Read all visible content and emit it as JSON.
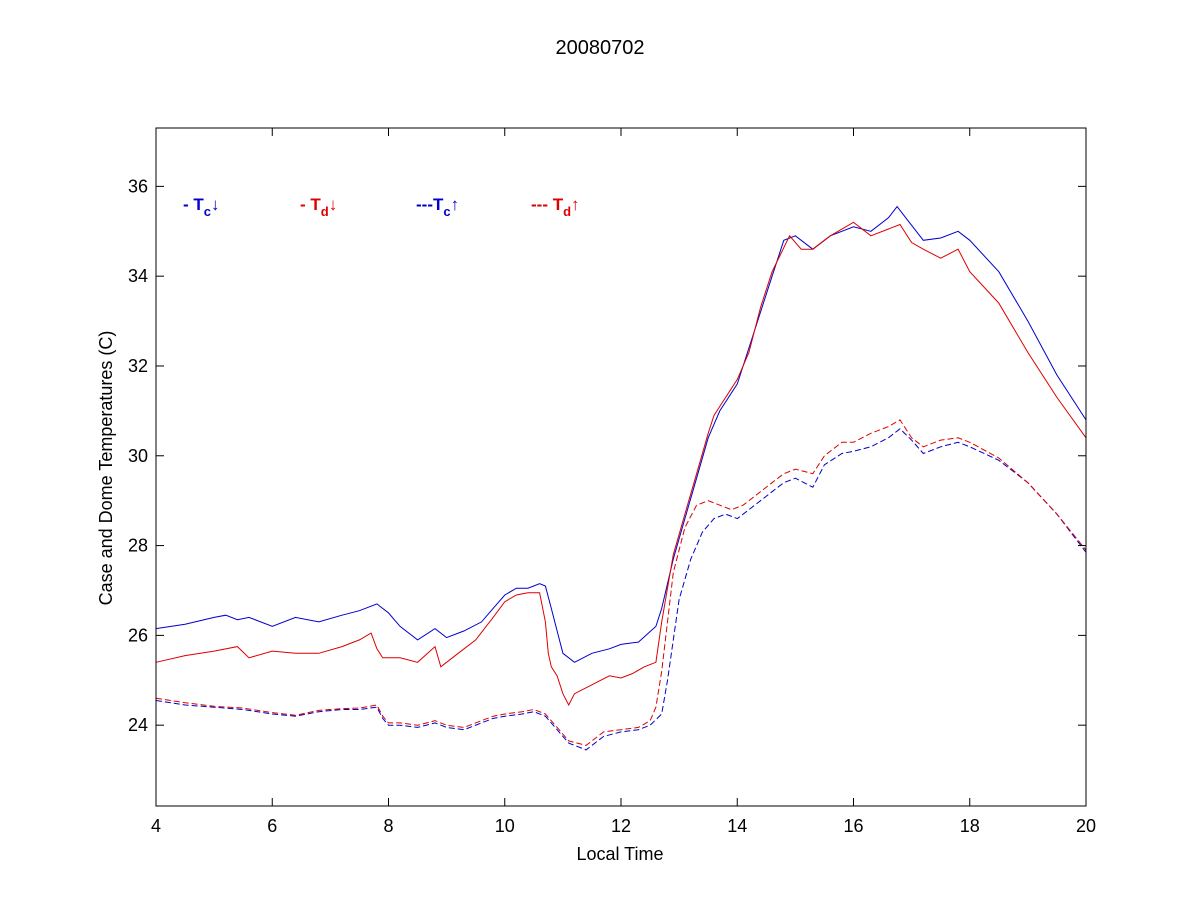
{
  "chart_data": {
    "type": "line",
    "title": "20080702",
    "xlabel": "Local Time",
    "ylabel": "Case and Dome Temperatures (C)",
    "xlim": [
      4,
      20
    ],
    "ylim": [
      22.2,
      37.3
    ],
    "xticks": [
      4,
      6,
      8,
      10,
      12,
      14,
      16,
      18,
      20
    ],
    "yticks": [
      24,
      26,
      28,
      30,
      32,
      34,
      36
    ],
    "grid": false,
    "legend_position": "top-left",
    "series": [
      {
        "key": "tc_down",
        "legend": {
          "prefix": "- ",
          "sym": "T",
          "sub": "c",
          "arrow": "↓"
        },
        "color": "#0000cc",
        "dash": "solid",
        "x": [
          4.0,
          4.5,
          5.0,
          5.2,
          5.4,
          5.6,
          6.0,
          6.4,
          6.8,
          7.2,
          7.5,
          7.8,
          8.0,
          8.2,
          8.5,
          8.8,
          9.0,
          9.3,
          9.6,
          9.8,
          10.0,
          10.2,
          10.4,
          10.6,
          10.7,
          10.8,
          11.0,
          11.2,
          11.5,
          11.8,
          12.0,
          12.3,
          12.6,
          12.7,
          12.9,
          13.1,
          13.3,
          13.5,
          13.7,
          14.0,
          14.3,
          14.6,
          14.8,
          15.0,
          15.3,
          15.6,
          16.0,
          16.3,
          16.6,
          16.75,
          16.9,
          17.2,
          17.5,
          17.8,
          18.0,
          18.5,
          19.0,
          19.5,
          20.0
        ],
        "y": [
          26.15,
          26.25,
          26.4,
          26.45,
          26.35,
          26.4,
          26.2,
          26.4,
          26.3,
          26.45,
          26.55,
          26.7,
          26.5,
          26.2,
          25.9,
          26.15,
          25.95,
          26.1,
          26.3,
          26.6,
          26.9,
          27.05,
          27.05,
          27.15,
          27.1,
          26.6,
          25.6,
          25.4,
          25.6,
          25.7,
          25.8,
          25.85,
          26.2,
          26.6,
          27.7,
          28.6,
          29.5,
          30.4,
          31.0,
          31.6,
          32.8,
          34.0,
          34.8,
          34.9,
          34.6,
          34.9,
          35.1,
          35.0,
          35.3,
          35.55,
          35.3,
          34.8,
          34.85,
          35.0,
          34.8,
          34.1,
          33.0,
          31.8,
          30.8
        ]
      },
      {
        "key": "td_down",
        "legend": {
          "prefix": "- ",
          "sym": "T",
          "sub": "d",
          "arrow": "↓"
        },
        "color": "#dd0000",
        "dash": "solid",
        "x": [
          4.0,
          4.5,
          5.0,
          5.4,
          5.6,
          6.0,
          6.4,
          6.8,
          7.2,
          7.5,
          7.7,
          7.8,
          7.9,
          8.2,
          8.5,
          8.8,
          8.9,
          9.0,
          9.2,
          9.5,
          9.8,
          10.0,
          10.2,
          10.4,
          10.6,
          10.7,
          10.75,
          10.8,
          10.9,
          11.0,
          11.1,
          11.2,
          11.5,
          11.8,
          12.0,
          12.2,
          12.4,
          12.6,
          12.7,
          12.9,
          13.1,
          13.3,
          13.5,
          13.6,
          13.7,
          14.0,
          14.2,
          14.4,
          14.6,
          14.9,
          15.1,
          15.3,
          15.6,
          16.0,
          16.3,
          16.6,
          16.8,
          17.0,
          17.2,
          17.5,
          17.8,
          18.0,
          18.5,
          19.0,
          19.5,
          20.0
        ],
        "y": [
          25.4,
          25.55,
          25.65,
          25.75,
          25.5,
          25.65,
          25.6,
          25.6,
          25.75,
          25.9,
          26.05,
          25.7,
          25.5,
          25.5,
          25.4,
          25.75,
          25.3,
          25.4,
          25.6,
          25.9,
          26.4,
          26.75,
          26.9,
          26.95,
          26.95,
          26.3,
          25.6,
          25.3,
          25.1,
          24.7,
          24.45,
          24.7,
          24.9,
          25.1,
          25.05,
          25.15,
          25.3,
          25.4,
          26.3,
          27.8,
          28.7,
          29.6,
          30.5,
          30.9,
          31.1,
          31.7,
          32.3,
          33.3,
          34.1,
          34.9,
          34.6,
          34.6,
          34.9,
          35.2,
          34.9,
          35.05,
          35.15,
          34.75,
          34.6,
          34.4,
          34.6,
          34.1,
          33.4,
          32.3,
          31.3,
          30.4
        ]
      },
      {
        "key": "tc_up",
        "legend": {
          "prefix": "---",
          "sym": "T",
          "sub": "c",
          "arrow": "↑"
        },
        "color": "#0000cc",
        "dash": "dashed",
        "x": [
          4.0,
          4.5,
          5.0,
          5.5,
          6.0,
          6.4,
          6.8,
          7.2,
          7.5,
          7.8,
          7.9,
          8.0,
          8.2,
          8.5,
          8.8,
          9.0,
          9.3,
          9.6,
          9.8,
          10.0,
          10.3,
          10.5,
          10.7,
          10.9,
          11.1,
          11.4,
          11.7,
          12.0,
          12.3,
          12.5,
          12.7,
          12.8,
          13.0,
          13.2,
          13.4,
          13.6,
          13.8,
          14.0,
          14.3,
          14.6,
          14.8,
          15.0,
          15.3,
          15.5,
          15.8,
          16.0,
          16.3,
          16.6,
          16.8,
          17.0,
          17.2,
          17.5,
          17.8,
          18.0,
          18.5,
          19.0,
          19.5,
          20.0
        ],
        "y": [
          24.55,
          24.45,
          24.4,
          24.35,
          24.25,
          24.2,
          24.3,
          24.35,
          24.35,
          24.4,
          24.15,
          24.0,
          24.0,
          23.95,
          24.05,
          23.95,
          23.9,
          24.05,
          24.15,
          24.2,
          24.25,
          24.3,
          24.2,
          23.9,
          23.6,
          23.45,
          23.75,
          23.85,
          23.9,
          24.0,
          24.25,
          25.0,
          26.8,
          27.7,
          28.3,
          28.6,
          28.7,
          28.6,
          28.9,
          29.2,
          29.4,
          29.5,
          29.3,
          29.8,
          30.05,
          30.1,
          30.2,
          30.4,
          30.6,
          30.35,
          30.05,
          30.2,
          30.3,
          30.2,
          29.9,
          29.4,
          28.7,
          27.85
        ]
      },
      {
        "key": "td_up",
        "legend": {
          "prefix": "--- ",
          "sym": "T",
          "sub": "d",
          "arrow": "↑"
        },
        "color": "#dd0000",
        "dash": "dashed",
        "x": [
          4.0,
          4.5,
          5.0,
          5.5,
          6.0,
          6.4,
          6.8,
          7.2,
          7.5,
          7.8,
          7.9,
          8.0,
          8.2,
          8.5,
          8.8,
          9.0,
          9.3,
          9.6,
          9.8,
          10.0,
          10.3,
          10.5,
          10.7,
          10.9,
          11.1,
          11.4,
          11.7,
          12.0,
          12.3,
          12.5,
          12.6,
          12.7,
          12.9,
          13.1,
          13.3,
          13.5,
          13.7,
          13.9,
          14.1,
          14.3,
          14.6,
          14.8,
          15.0,
          15.3,
          15.5,
          15.8,
          16.0,
          16.3,
          16.6,
          16.8,
          17.0,
          17.2,
          17.5,
          17.8,
          18.0,
          18.5,
          19.0,
          19.5,
          20.0
        ],
        "y": [
          24.6,
          24.5,
          24.42,
          24.38,
          24.28,
          24.22,
          24.33,
          24.37,
          24.38,
          24.45,
          24.2,
          24.05,
          24.05,
          24.0,
          24.1,
          24.0,
          23.95,
          24.1,
          24.2,
          24.25,
          24.3,
          24.35,
          24.25,
          23.95,
          23.65,
          23.55,
          23.85,
          23.9,
          23.95,
          24.1,
          24.4,
          25.2,
          27.4,
          28.4,
          28.9,
          29.0,
          28.9,
          28.8,
          28.9,
          29.1,
          29.4,
          29.6,
          29.7,
          29.6,
          30.0,
          30.3,
          30.3,
          30.5,
          30.65,
          30.8,
          30.4,
          30.2,
          30.35,
          30.4,
          30.3,
          29.95,
          29.4,
          28.7,
          27.9
        ]
      }
    ]
  }
}
